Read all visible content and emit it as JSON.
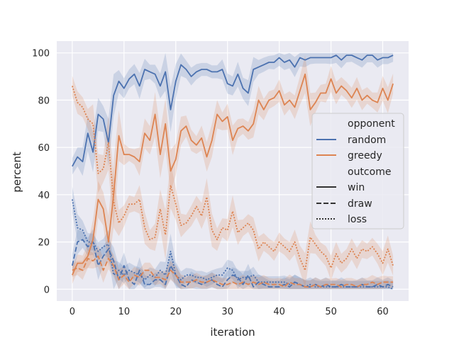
{
  "chart_data": {
    "type": "line",
    "xlabel": "iteration",
    "ylabel": "percent",
    "xlim": [
      -3,
      65
    ],
    "ylim": [
      -5,
      105
    ],
    "xticks": [
      0,
      10,
      20,
      30,
      40,
      50,
      60
    ],
    "yticks": [
      0,
      20,
      40,
      60,
      80,
      100
    ],
    "grid": true,
    "legend": {
      "placement": "center-right",
      "title_hue": "opponent",
      "title_style": "outcome",
      "hue": [
        {
          "name": "random",
          "color": "#4c72b0"
        },
        {
          "name": "greedy",
          "color": "#dd8452"
        }
      ],
      "style": [
        {
          "name": "win",
          "dash": "solid"
        },
        {
          "name": "draw",
          "dash": "dashed"
        },
        {
          "name": "loss",
          "dash": "dotted"
        }
      ]
    },
    "series": [
      {
        "name": "random",
        "outcome": "win",
        "color": "#4c72b0",
        "x": [
          0,
          1,
          2,
          3,
          4,
          5,
          6,
          7,
          8,
          9,
          10,
          11,
          12,
          13,
          14,
          15,
          16,
          17,
          18,
          19,
          20,
          21,
          22,
          23,
          24,
          25,
          26,
          27,
          28,
          29,
          30,
          31,
          32,
          33,
          34,
          35,
          36,
          37,
          38,
          39,
          40,
          41,
          42,
          43,
          44,
          45,
          46,
          47,
          48,
          49,
          50,
          51,
          52,
          53,
          54,
          55,
          56,
          57,
          58,
          59,
          60,
          61,
          62
        ],
        "y": [
          52,
          56,
          54,
          66,
          58,
          74,
          72,
          62,
          82,
          88,
          85,
          89,
          91,
          86,
          93,
          92,
          91,
          86,
          92,
          76,
          88,
          95,
          93,
          90,
          92,
          93,
          93,
          92,
          92,
          93,
          87,
          86,
          91,
          85,
          83,
          93,
          94,
          95,
          96,
          96,
          98,
          96,
          97,
          94,
          98,
          97,
          98,
          98,
          98,
          98,
          98,
          99,
          97,
          99,
          99,
          98,
          97,
          99,
          99,
          97,
          98,
          98,
          99
        ]
      },
      {
        "name": "random",
        "outcome": "draw",
        "color": "#4c72b0",
        "x": [
          0,
          1,
          2,
          3,
          4,
          5,
          6,
          7,
          8,
          9,
          10,
          11,
          12,
          13,
          14,
          15,
          16,
          17,
          18,
          19,
          20,
          21,
          22,
          23,
          24,
          25,
          26,
          27,
          28,
          29,
          30,
          31,
          32,
          33,
          34,
          35,
          36,
          37,
          38,
          39,
          40,
          41,
          42,
          43,
          44,
          45,
          46,
          47,
          48,
          49,
          50,
          51,
          52,
          53,
          54,
          55,
          56,
          57,
          58,
          59,
          60,
          61,
          62
        ],
        "y": [
          10,
          20,
          21,
          18,
          20,
          10,
          14,
          17,
          12,
          4,
          10,
          4,
          2,
          8,
          2,
          2,
          4,
          4,
          2,
          10,
          6,
          2,
          1,
          4,
          3,
          2,
          3,
          4,
          2,
          1,
          4,
          6,
          5,
          2,
          6,
          1,
          3,
          2,
          1,
          1,
          1,
          2,
          1,
          3,
          2,
          1,
          1,
          2,
          1,
          2,
          1,
          1,
          2,
          1,
          1,
          1,
          2,
          1,
          1,
          2,
          1,
          2,
          1
        ]
      },
      {
        "name": "random",
        "outcome": "loss",
        "color": "#4c72b0",
        "x": [
          0,
          1,
          2,
          3,
          4,
          5,
          6,
          7,
          8,
          9,
          10,
          11,
          12,
          13,
          14,
          15,
          16,
          17,
          18,
          19,
          20,
          21,
          22,
          23,
          24,
          25,
          26,
          27,
          28,
          29,
          30,
          31,
          32,
          33,
          34,
          35,
          36,
          37,
          38,
          39,
          40,
          41,
          42,
          43,
          44,
          45,
          46,
          47,
          48,
          49,
          50,
          51,
          52,
          53,
          54,
          55,
          56,
          57,
          58,
          59,
          60,
          61,
          62
        ],
        "y": [
          38,
          26,
          25,
          20,
          20,
          16,
          18,
          19,
          6,
          8,
          6,
          8,
          7,
          6,
          4,
          6,
          5,
          8,
          6,
          16,
          6,
          4,
          6,
          6,
          5,
          5,
          4,
          5,
          6,
          6,
          9,
          8,
          4,
          5,
          5,
          6,
          3,
          3,
          3,
          3,
          3,
          3,
          2,
          3,
          2,
          1,
          2,
          1,
          1,
          1,
          1,
          1,
          1,
          1,
          1,
          1,
          1,
          1,
          1,
          1,
          1,
          1,
          0
        ]
      },
      {
        "name": "greedy",
        "outcome": "win",
        "color": "#dd8452",
        "x": [
          0,
          1,
          2,
          3,
          4,
          5,
          6,
          7,
          8,
          9,
          10,
          11,
          12,
          13,
          14,
          15,
          16,
          17,
          18,
          19,
          20,
          21,
          22,
          23,
          24,
          25,
          26,
          27,
          28,
          29,
          30,
          31,
          32,
          33,
          34,
          35,
          36,
          37,
          38,
          39,
          40,
          41,
          42,
          43,
          44,
          45,
          46,
          47,
          48,
          49,
          50,
          51,
          52,
          53,
          54,
          55,
          56,
          57,
          58,
          59,
          60,
          61,
          62
        ],
        "y": [
          6,
          11,
          11,
          14,
          21,
          38,
          34,
          20,
          40,
          65,
          57,
          57,
          56,
          54,
          66,
          63,
          74,
          57,
          70,
          50,
          55,
          67,
          69,
          63,
          61,
          64,
          56,
          63,
          74,
          71,
          73,
          63,
          68,
          69,
          67,
          70,
          80,
          76,
          80,
          81,
          84,
          78,
          80,
          77,
          84,
          91,
          76,
          79,
          83,
          83,
          89,
          83,
          86,
          84,
          81,
          85,
          80,
          82,
          80,
          79,
          85,
          80,
          87
        ]
      },
      {
        "name": "greedy",
        "outcome": "draw",
        "color": "#dd8452",
        "x": [
          0,
          1,
          2,
          3,
          4,
          5,
          6,
          7,
          8,
          9,
          10,
          11,
          12,
          13,
          14,
          15,
          16,
          17,
          18,
          19,
          20,
          21,
          22,
          23,
          24,
          25,
          26,
          27,
          28,
          29,
          30,
          31,
          32,
          33,
          34,
          35,
          36,
          37,
          38,
          39,
          40,
          41,
          42,
          43,
          44,
          45,
          46,
          47,
          48,
          49,
          50,
          51,
          52,
          53,
          54,
          55,
          56,
          57,
          58,
          59,
          60,
          61,
          62
        ],
        "y": [
          8,
          9,
          8,
          13,
          12,
          14,
          8,
          13,
          10,
          4,
          6,
          3,
          6,
          5,
          8,
          8,
          5,
          5,
          4,
          8,
          6,
          3,
          3,
          3,
          4,
          3,
          3,
          4,
          3,
          2,
          2,
          3,
          2,
          3,
          2,
          3,
          2,
          3,
          2,
          2,
          2,
          1,
          3,
          2,
          2,
          1,
          1,
          2,
          1,
          2,
          2,
          2,
          1,
          2,
          2,
          1,
          2,
          2,
          3,
          2,
          3,
          3,
          3
        ]
      },
      {
        "name": "greedy",
        "outcome": "loss",
        "color": "#dd8452",
        "x": [
          0,
          1,
          2,
          3,
          4,
          5,
          6,
          7,
          8,
          9,
          10,
          11,
          12,
          13,
          14,
          15,
          16,
          17,
          18,
          19,
          20,
          21,
          22,
          23,
          24,
          25,
          26,
          27,
          28,
          29,
          30,
          31,
          32,
          33,
          34,
          35,
          36,
          37,
          38,
          39,
          40,
          41,
          42,
          43,
          44,
          45,
          46,
          47,
          48,
          49,
          50,
          51,
          52,
          53,
          54,
          55,
          56,
          57,
          58,
          59,
          60,
          61,
          62
        ],
        "y": [
          86,
          79,
          77,
          72,
          70,
          49,
          51,
          62,
          37,
          28,
          31,
          36,
          36,
          38,
          26,
          21,
          22,
          34,
          23,
          44,
          36,
          27,
          28,
          31,
          35,
          31,
          39,
          25,
          21,
          26,
          25,
          33,
          24,
          26,
          28,
          25,
          17,
          20,
          18,
          16,
          20,
          18,
          16,
          20,
          13,
          8,
          22,
          19,
          16,
          14,
          9,
          15,
          11,
          13,
          17,
          13,
          17,
          16,
          18,
          15,
          11,
          17,
          10
        ]
      }
    ]
  }
}
